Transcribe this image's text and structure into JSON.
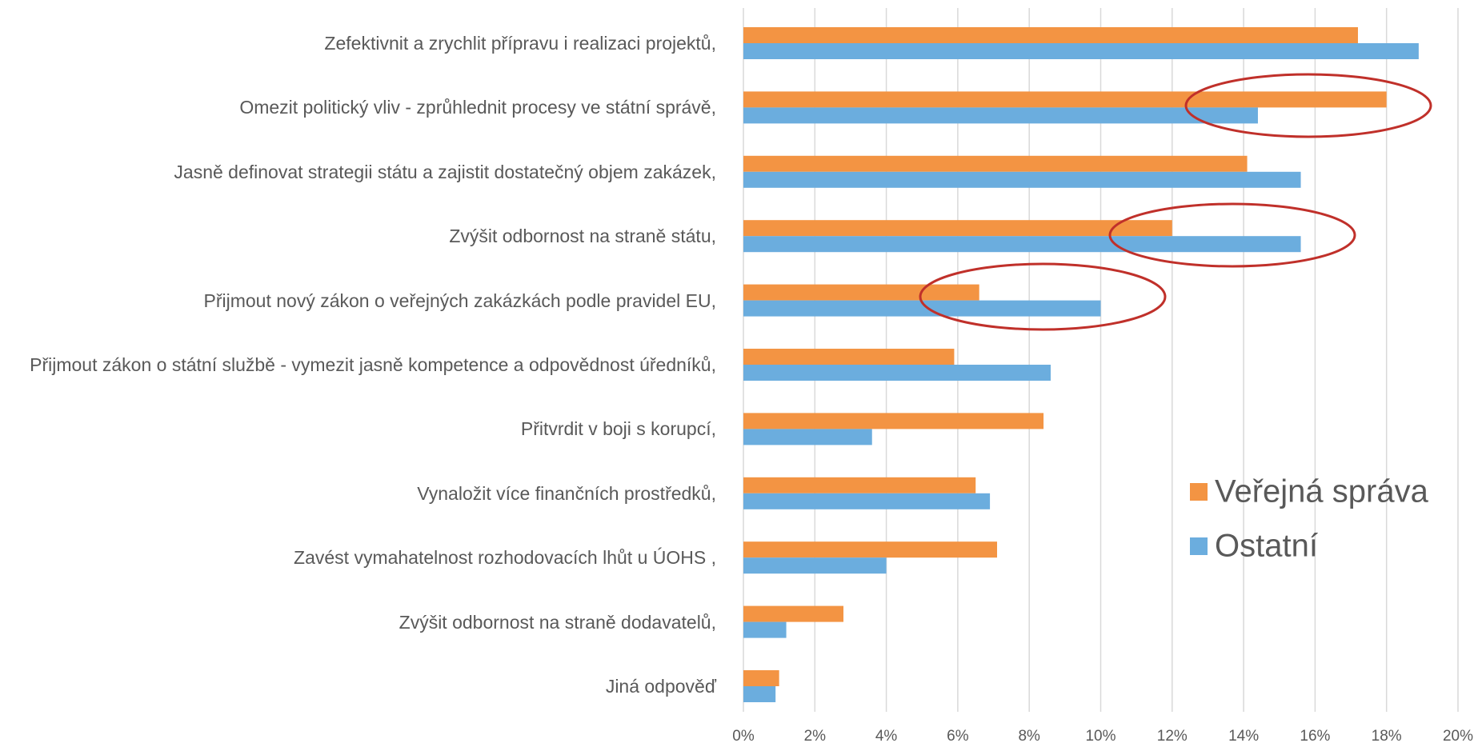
{
  "chart_data": {
    "type": "hbar",
    "categories": [
      "Zefektivnit a zrychlit přípravu i realizaci projektů,",
      "Omezit politický vliv - zprůhlednit procesy ve státní správě,",
      "Jasně definovat strategii státu a zajistit dostatečný objem zakázek,",
      "Zvýšit odbornost na straně státu,",
      "Přijmout nový zákon o veřejných zakázkách podle pravidel EU,",
      "Přijmout zákon o státní službě - vymezit jasně kompetence a odpovědnost úředníků,",
      "Přitvrdit v boji s korupcí,",
      "Vynaložit více finančních prostředků,",
      "Zavést vymahatelnost rozhodovacích lhůt u ÚOHS ,",
      "Zvýšit odbornost na straně dodavatelů,",
      "Jiná odpověď"
    ],
    "series": [
      {
        "name": "Veřejná správa",
        "color": "#f39443",
        "values": [
          17.2,
          18.0,
          14.1,
          12.0,
          6.6,
          5.9,
          8.4,
          6.5,
          7.1,
          2.8,
          1.0
        ]
      },
      {
        "name": "Ostatní",
        "color": "#6badde",
        "values": [
          18.9,
          14.4,
          15.6,
          15.6,
          10.0,
          8.6,
          3.6,
          6.9,
          4.0,
          1.2,
          0.9
        ]
      }
    ],
    "xlim": [
      0,
      20
    ],
    "xticks": [
      {
        "value": 0,
        "label": "0%"
      },
      {
        "value": 2,
        "label": "2%"
      },
      {
        "value": 4,
        "label": "4%"
      },
      {
        "value": 6,
        "label": "6%"
      },
      {
        "value": 8,
        "label": "8%"
      },
      {
        "value": 10,
        "label": "10%"
      },
      {
        "value": 12,
        "label": "12%"
      },
      {
        "value": 14,
        "label": "14%"
      },
      {
        "value": 16,
        "label": "16%"
      },
      {
        "value": 18,
        "label": "18%"
      },
      {
        "value": 20,
        "label": "20%"
      }
    ],
    "grid": true
  }
}
